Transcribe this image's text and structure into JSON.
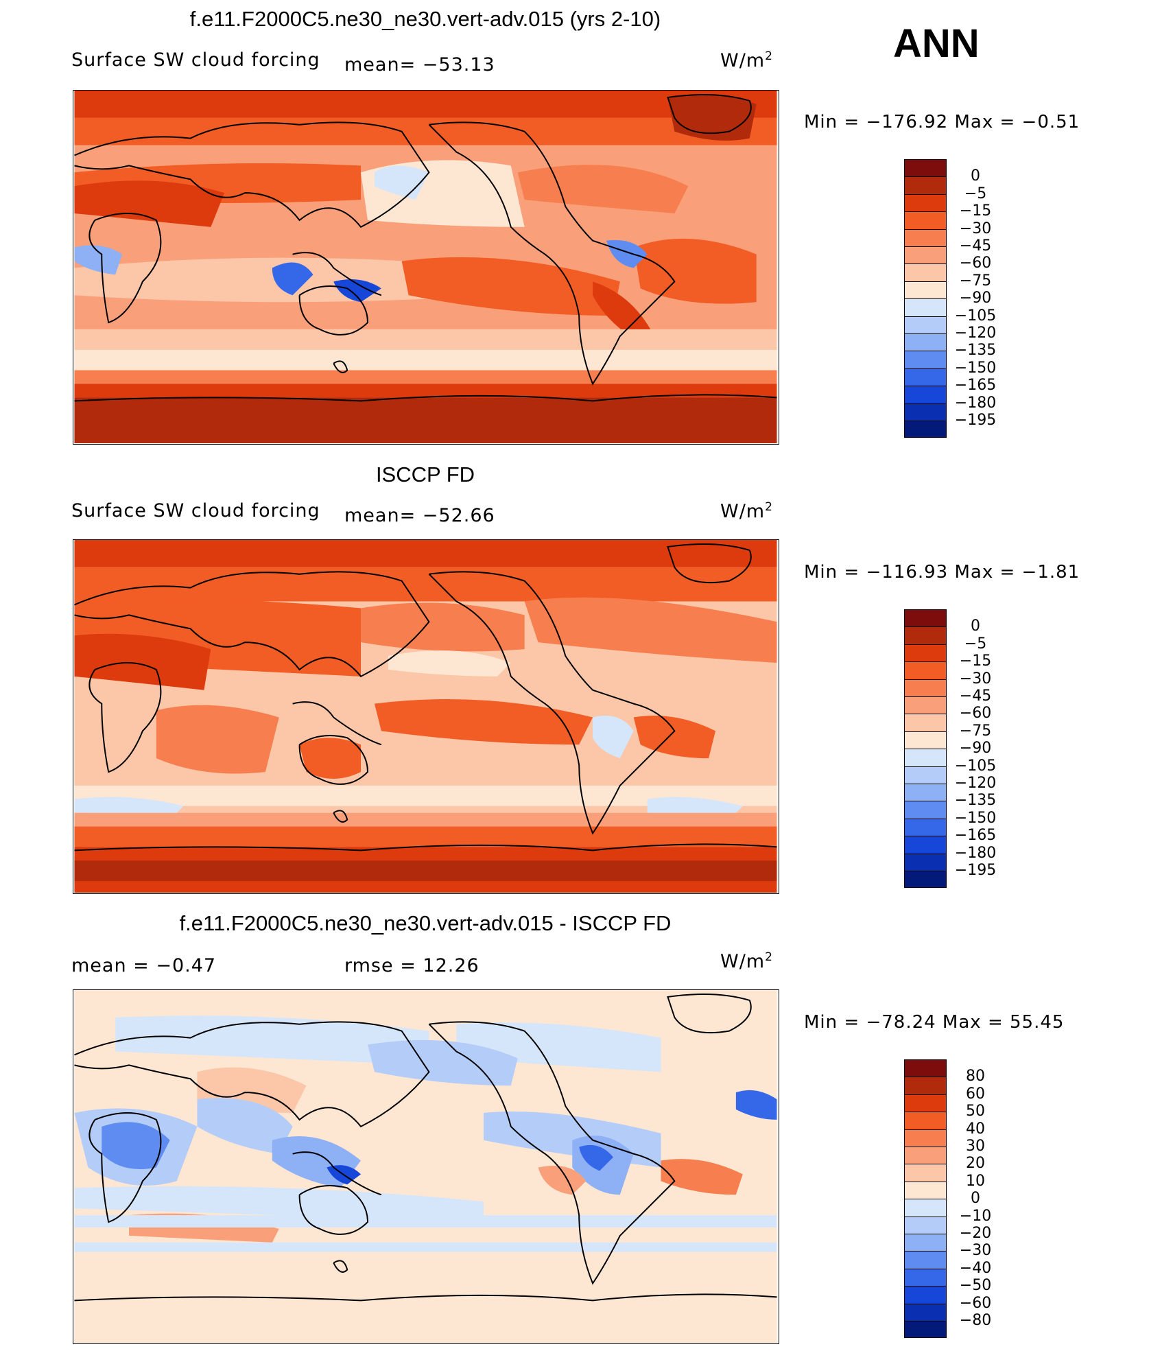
{
  "season": "ANN",
  "units_base": "W/m",
  "units_exp": "2",
  "panels": [
    {
      "id": "model",
      "title": "f.e11.F2000C5.ne30_ne30.vert-adv.015 (yrs 2-10)",
      "left_label": "Surface SW cloud forcing",
      "mid_label": "mean=  −53.13",
      "min_max": "Min  =  −176.92  Max  =    −0.51"
    },
    {
      "id": "obs",
      "title": "ISCCP FD",
      "left_label": "Surface SW cloud forcing",
      "mid_label": "mean=  −52.66",
      "min_max": "Min  =  −116.93  Max  =    −1.81"
    },
    {
      "id": "diff",
      "title": "f.e11.F2000C5.ne30_ne30.vert-adv.015 - ISCCP FD",
      "left_label": "mean  =    −0.47",
      "mid_label": "rmse  =    12.26",
      "min_max": "Min  =  −78.24  Max  =    55.45"
    }
  ],
  "colorbars": {
    "absolute": {
      "labels": [
        "0",
        "−5",
        "−15",
        "−30",
        "−45",
        "−60",
        "−75",
        "−90",
        "−105",
        "−120",
        "−135",
        "−150",
        "−165",
        "−180",
        "−195"
      ],
      "colors": [
        "#7d0c0c",
        "#b22a0c",
        "#dd3a0e",
        "#f25c25",
        "#f77e4e",
        "#f9a07a",
        "#fcc6a8",
        "#fde6d2",
        "#d6e6fa",
        "#b4cdf8",
        "#8eb0f5",
        "#5e8cf0",
        "#3568e8",
        "#1747d8",
        "#0a2fb0",
        "#031a7a"
      ],
      "level_values": [
        0,
        -5,
        -15,
        -30,
        -45,
        -60,
        -75,
        -90,
        -105,
        -120,
        -135,
        -150,
        -165,
        -180,
        -195
      ]
    },
    "difference": {
      "labels": [
        "80",
        "60",
        "50",
        "40",
        "30",
        "20",
        "10",
        "0",
        "−10",
        "−20",
        "−30",
        "−40",
        "−50",
        "−60",
        "−80"
      ],
      "colors": [
        "#7d0c0c",
        "#b22a0c",
        "#dd3a0e",
        "#f25c25",
        "#f77e4e",
        "#f9a07a",
        "#fcc6a8",
        "#fde6d2",
        "#d6e6fa",
        "#b4cdf8",
        "#8eb0f5",
        "#5e8cf0",
        "#3568e8",
        "#1747d8",
        "#0a2fb0",
        "#031a7a"
      ],
      "level_values": [
        80,
        60,
        50,
        40,
        30,
        20,
        10,
        0,
        -10,
        -20,
        -30,
        -40,
        -50,
        -60,
        -80
      ]
    }
  }
}
